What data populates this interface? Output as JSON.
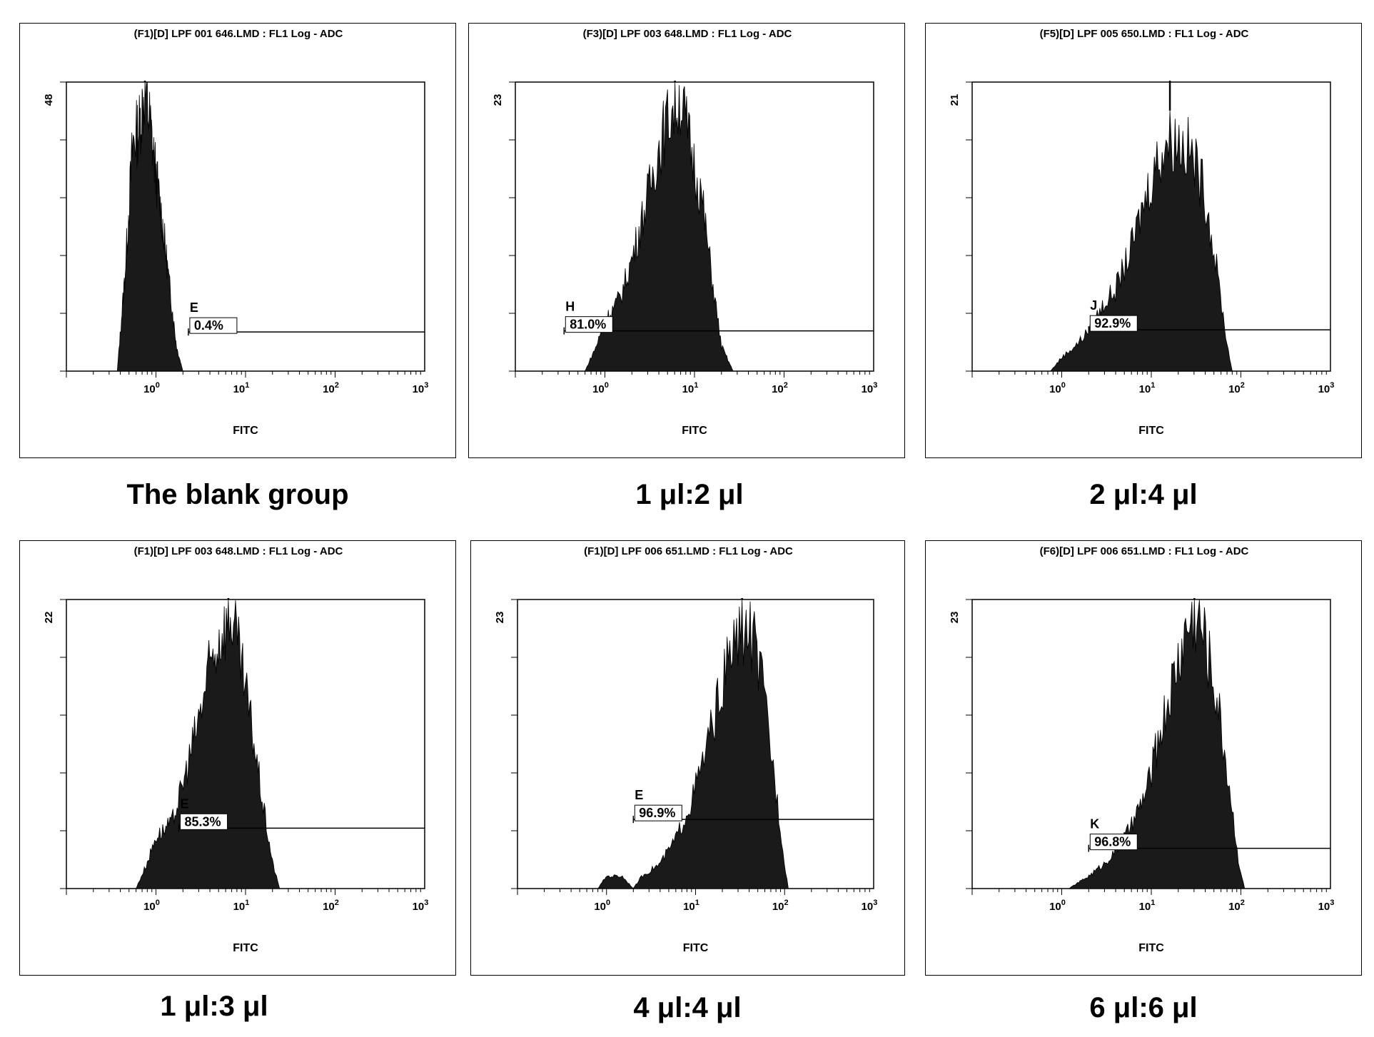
{
  "chart_data": [
    {
      "type": "area",
      "title": "(F1)[D] LPF 001 646.LMD : FL1 Log - ADC",
      "xlabel": "FITC",
      "x_scale": "log",
      "xlim": [
        0.1,
        1000
      ],
      "x_ticks": [
        "10^0",
        "10^1",
        "10^2",
        "10^3"
      ],
      "ylim": [
        0,
        48
      ],
      "y_top_label": "48",
      "gate": {
        "label": "E",
        "percent": "0.4%",
        "x_start": 2.3,
        "level": 6.5
      },
      "histogram": {
        "x": [
          0.37,
          0.45,
          0.55,
          0.65,
          0.75,
          0.85,
          1.0,
          1.2,
          1.45,
          1.7,
          2.0
        ],
        "y": [
          0,
          16,
          38,
          41,
          47,
          42,
          33,
          24,
          13,
          4,
          0
        ]
      },
      "caption": "The blank group"
    },
    {
      "type": "area",
      "title": "(F3)[D] LPF 003 648.LMD : FL1 Log - ADC",
      "xlabel": "FITC",
      "x_scale": "log",
      "xlim": [
        0.1,
        1000
      ],
      "x_ticks": [
        "10^0",
        "10^1",
        "10^2",
        "10^3"
      ],
      "ylim": [
        0,
        23
      ],
      "y_top_label": "23",
      "gate": {
        "label": "H",
        "percent": "81.0%",
        "x_start": 0.35,
        "level": 3.2
      },
      "histogram": {
        "x": [
          0.6,
          0.8,
          1.0,
          1.5,
          2.0,
          3.0,
          4.0,
          5.5,
          7.0,
          9.0,
          12.0,
          16.0,
          20.0,
          27.0
        ],
        "y": [
          0,
          2,
          4,
          6,
          9,
          14,
          18,
          21,
          22,
          18,
          14,
          7,
          2,
          0
        ]
      },
      "caption": "1 μl:2 μl"
    },
    {
      "type": "area",
      "title": "(F5)[D] LPF 005 650.LMD : FL1 Log - ADC",
      "xlabel": "FITC",
      "x_scale": "log",
      "xlim": [
        0.1,
        1000
      ],
      "x_ticks": [
        "10^0",
        "10^1",
        "10^2",
        "10^3"
      ],
      "ylim": [
        0,
        21
      ],
      "y_top_label": "21",
      "gate": {
        "label": "J",
        "percent": "92.9%",
        "x_start": 2.0,
        "level": 3.0
      },
      "histogram": {
        "x": [
          0.75,
          1.0,
          1.5,
          2.0,
          3.0,
          4.0,
          6.0,
          8.0,
          11.0,
          15.0,
          20.0,
          28.0,
          40.0,
          55.0,
          70.0,
          80.0
        ],
        "y": [
          0,
          1,
          2,
          3,
          5,
          6,
          9,
          12,
          15,
          17,
          17,
          16,
          13,
          7,
          2,
          0
        ]
      },
      "caption": "2 μl:4 μl"
    },
    {
      "type": "area",
      "title": "(F1)[D] LPF 003 648.LMD : FL1 Log - ADC",
      "xlabel": "FITC",
      "x_scale": "log",
      "xlim": [
        0.1,
        1000
      ],
      "x_ticks": [
        "10^0",
        "10^1",
        "10^2",
        "10^3"
      ],
      "ylim": [
        0,
        22
      ],
      "y_top_label": "22",
      "gate": {
        "label": "E",
        "percent": "85.3%",
        "x_start": 1.8,
        "level": 4.6
      },
      "histogram": {
        "x": [
          0.6,
          0.8,
          1.0,
          1.5,
          2.0,
          3.0,
          4.0,
          5.5,
          7.0,
          9.0,
          12.0,
          16.0,
          20.0,
          24.0
        ],
        "y": [
          0,
          2,
          4,
          5,
          8,
          13,
          17,
          20,
          21,
          17,
          12,
          6,
          2,
          0
        ]
      },
      "caption": "1 μl:3 μl"
    },
    {
      "type": "area",
      "title": "(F1)[D] LPF 006 651.LMD : FL1 Log - ADC",
      "xlabel": "FITC",
      "x_scale": "log",
      "xlim": [
        0.1,
        1000
      ],
      "x_ticks": [
        "10^0",
        "10^1",
        "10^2",
        "10^3"
      ],
      "ylim": [
        0,
        23
      ],
      "y_top_label": "23",
      "gate": {
        "label": "E",
        "percent": "96.9%",
        "x_start": 2.0,
        "level": 5.5
      },
      "histogram": {
        "x": [
          0.8,
          1.0,
          1.5,
          2.0,
          2.5,
          4.0,
          6.0,
          9.0,
          13.0,
          18.0,
          25.0,
          35.0,
          45.0,
          60.0,
          80.0,
          100.0,
          110.0
        ],
        "y": [
          0,
          1,
          1,
          0,
          1,
          2,
          4,
          7,
          11,
          15,
          19,
          21,
          20,
          15,
          8,
          2,
          0
        ]
      },
      "caption": "4 μl:4 μl"
    },
    {
      "type": "area",
      "title": "(F6)[D] LPF 006 651.LMD : FL1 Log - ADC",
      "xlabel": "FITC",
      "x_scale": "log",
      "xlim": [
        0.1,
        1000
      ],
      "x_ticks": [
        "10^0",
        "10^1",
        "10^2",
        "10^3"
      ],
      "ylim": [
        0,
        23
      ],
      "y_top_label": "23",
      "gate": {
        "label": "K",
        "percent": "96.8%",
        "x_start": 2.0,
        "level": 3.2
      },
      "histogram": {
        "x": [
          1.2,
          2.0,
          3.0,
          4.0,
          6.0,
          9.0,
          13.0,
          18.0,
          25.0,
          32.0,
          40.0,
          55.0,
          75.0,
          95.0,
          110.0
        ],
        "y": [
          0,
          1,
          2,
          3,
          5,
          8,
          13,
          17,
          21,
          22,
          20,
          15,
          8,
          2,
          0
        ]
      },
      "caption": "6 μl:6 μl"
    }
  ]
}
